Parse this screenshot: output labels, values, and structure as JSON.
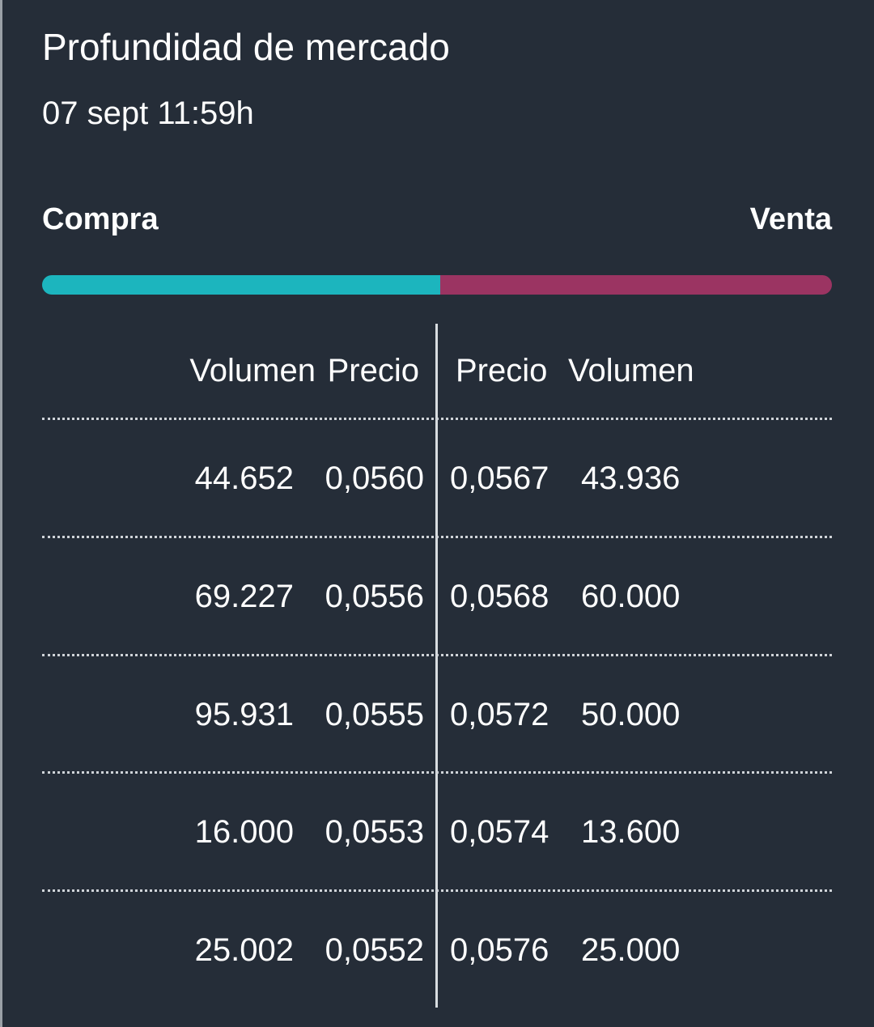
{
  "header": {
    "title": "Profundidad de mercado",
    "subtitle": "07 sept 11:59h"
  },
  "sides": {
    "buy": "Compra",
    "sell": "Venta"
  },
  "table": {
    "columns": [
      "Volumen",
      "Precio",
      "Precio",
      "Volumen"
    ],
    "rows": [
      [
        "44.652",
        "0,0560",
        "0,0567",
        "43.936"
      ],
      [
        "69.227",
        "0,0556",
        "0,0568",
        "60.000"
      ],
      [
        "95.931",
        "0,0555",
        "0,0572",
        "50.000"
      ],
      [
        "16.000",
        "0,0553",
        "0,0574",
        "13.600"
      ],
      [
        "25.002",
        "0,0552",
        "0,0576",
        "25.000"
      ]
    ]
  }
}
